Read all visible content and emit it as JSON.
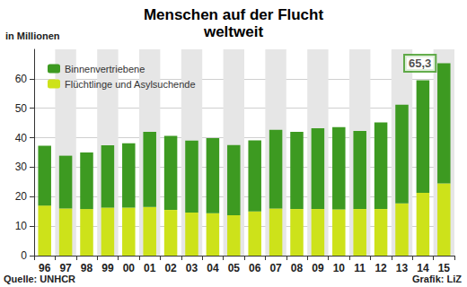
{
  "chart_data": {
    "type": "bar",
    "stacked": true,
    "title": "Menschen auf der Flucht\nweltweit",
    "y_label": "in Millionen",
    "source": "Quelle: UNHCR",
    "credit": "Grafik: LiZ",
    "categories": [
      "96",
      "97",
      "98",
      "99",
      "00",
      "01",
      "02",
      "03",
      "04",
      "05",
      "06",
      "07",
      "08",
      "09",
      "10",
      "11",
      "12",
      "13",
      "14",
      "15"
    ],
    "series": [
      {
        "name": "Flüchtlinge und Asylsuchende",
        "color": "#cde21a",
        "values": [
          17.0,
          16.0,
          15.8,
          16.3,
          16.3,
          16.5,
          15.5,
          14.6,
          14.4,
          13.7,
          15.0,
          16.0,
          15.8,
          15.8,
          15.7,
          15.8,
          15.8,
          17.7,
          21.3,
          24.5
        ]
      },
      {
        "name": "Binnenvertriebene",
        "color": "#3d9a21",
        "values": [
          20.3,
          17.9,
          19.2,
          21.1,
          21.8,
          25.5,
          25.1,
          24.4,
          25.5,
          23.8,
          24.1,
          26.7,
          26.2,
          27.4,
          27.9,
          26.5,
          29.4,
          33.5,
          38.2,
          40.8
        ]
      }
    ],
    "annotations": [
      {
        "x": "15",
        "y": 65.3,
        "text": "65,3"
      }
    ],
    "ylim": [
      0,
      70
    ],
    "yticks": [
      0,
      10,
      20,
      30,
      40,
      50,
      60
    ],
    "grid": true,
    "legend": "upper left"
  }
}
